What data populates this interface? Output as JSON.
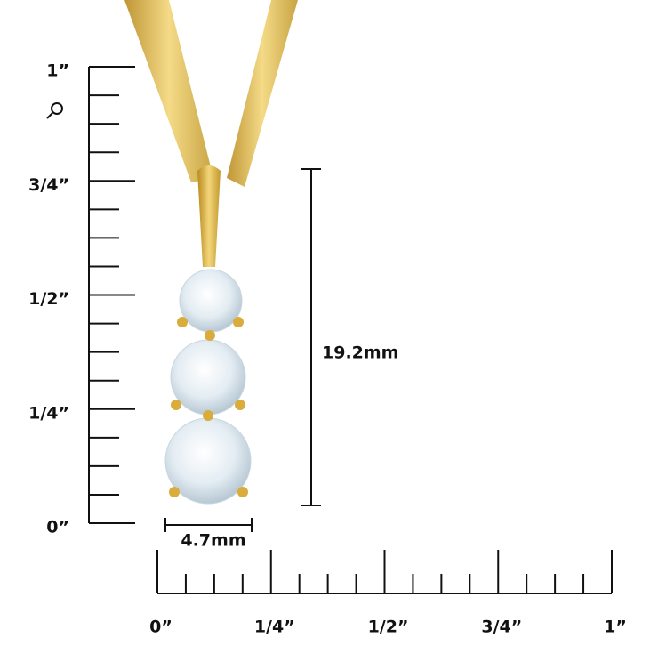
{
  "vertical_ruler": {
    "labels": [
      "1”",
      "3/4”",
      "1/2”",
      "1/4”",
      "0”"
    ]
  },
  "horizontal_ruler": {
    "labels": [
      "0”",
      "1/4”",
      "1/2”",
      "3/4”",
      "1”"
    ]
  },
  "dimensions": {
    "height": "19.2mm",
    "width": "4.7mm"
  }
}
